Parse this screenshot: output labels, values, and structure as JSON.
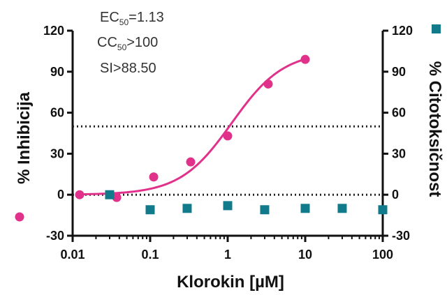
{
  "chart_data": {
    "type": "scatter",
    "x_scale": "log",
    "xlim": [
      0.01,
      100
    ],
    "ylim_left": [
      -30,
      120
    ],
    "ylim_right": [
      -30,
      120
    ],
    "x_ticks": [
      0.01,
      0.1,
      1,
      10,
      100
    ],
    "x_tick_labels": [
      "0.01",
      "0.1",
      "1",
      "10",
      "100"
    ],
    "y_ticks": [
      -30,
      0,
      30,
      60,
      90,
      120
    ],
    "y_tick_labels": [
      "-30",
      "0",
      "30",
      "60",
      "90",
      "120"
    ],
    "xlabel": "Klorokin [µM]",
    "ylabel_left": "% Inhibicija",
    "ylabel_right": "% Citotoksičnost",
    "annotation": {
      "ec_prefix": "EC",
      "ec_sub": "50",
      "ec_value": "=1.13",
      "cc_prefix": "CC",
      "cc_sub": "50",
      "cc_value": ">100",
      "si": "SI>88.50"
    },
    "reference_lines": [
      {
        "y": 50,
        "style": "dotted"
      },
      {
        "y": 0,
        "style": "dotted"
      }
    ],
    "series": [
      {
        "key": "inhibicija",
        "axis": "left",
        "marker": "circle",
        "color": "#e0328a",
        "x": [
          0.0123,
          0.037,
          0.111,
          0.333,
          1.0,
          3.33,
          10.0
        ],
        "y": [
          0,
          -2,
          13,
          24,
          43,
          81,
          99
        ],
        "fit_curve": {
          "model": "4PL",
          "bottom": 0,
          "top": 105,
          "ec50": 1.13,
          "hill": 1.3
        }
      },
      {
        "key": "citotoksicnost",
        "axis": "right",
        "marker": "square",
        "color": "#117b8c",
        "x": [
          0.03,
          0.1,
          0.3,
          1.0,
          3.0,
          10.0,
          30.0,
          100.0
        ],
        "y": [
          0,
          -11,
          -10,
          -8,
          -11,
          -10,
          -10,
          -11
        ]
      }
    ],
    "grid": false
  }
}
